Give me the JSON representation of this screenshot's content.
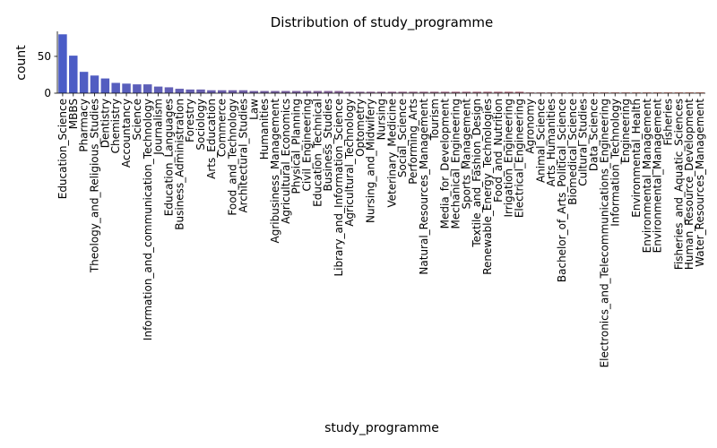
{
  "chart_data": {
    "type": "bar",
    "title": "Distribution of study_programme",
    "xlabel": "study_programme",
    "ylabel": "count",
    "ylim": [
      0,
      84
    ],
    "yticks": [
      0,
      50
    ],
    "grid": false,
    "legend": "none",
    "palette_from": "#4a5cc7",
    "palette_to": "#d8705a",
    "categories": [
      "Education_Science",
      "MBBS",
      "Pharmacy",
      "Theology_and_Religious_Studies",
      "Dentistry",
      "Chemistry",
      "Accountancy",
      "Science",
      "Information_and_communication_Technology",
      "Journalism",
      "Education_Languages",
      "Business_Administration",
      "Forestry",
      "Sociology",
      "Arts_Education",
      "Commerce",
      "Food_and_Technology",
      "Architectural_Studies",
      "Law",
      "Humanities",
      "Agribusiness_Management",
      "Agricultural_Economics",
      "Physical_Planning",
      "Civil_Engineering",
      "Education_Technical",
      "Business_Studies",
      "Library_and_Information_Science",
      "Agricultural_Technology",
      "Optometry",
      "Nursing_and_Midwifery",
      "Nursing",
      "Veterinary_Medicine",
      "Social_Science",
      "Performing_Arts",
      "Natural_Resources_Management",
      "Tourism",
      "Media_for_Development",
      "Mechanical_Engineering",
      "Sports_Management",
      "Textile_and_Fashion_Design",
      "Renewable_Energy_Technologies",
      "Food_and_Nutrition",
      "Irrigation_Engineering",
      "Electrical_Engineering",
      "Agronomy",
      "Animal_Science",
      "Arts_Humanities",
      "Bachelor_of_Arts_Political_Science",
      "Biomedical_Science",
      "Cultural_Studies",
      "Data_Science",
      "Electronics_and_Telecommunications_Engineering",
      "Information_Technology",
      "Engineering",
      "Environmental_Health",
      "Environmental_Management",
      "Environmental_Management",
      "Fisheries",
      "Fisheries_and_Aquatic_Sciences",
      "Human_Resource_Development",
      "Water_Resources_Management"
    ],
    "values": [
      80,
      51,
      29,
      24,
      20,
      14,
      13,
      12,
      12,
      9,
      8,
      6,
      5,
      5,
      4,
      4,
      4,
      4,
      3,
      3,
      3,
      3,
      3,
      3,
      3,
      3,
      3,
      2,
      2,
      2,
      2,
      2,
      2,
      2,
      2,
      2,
      2,
      2,
      2,
      2,
      2,
      2,
      2,
      2,
      1,
      1,
      1,
      1,
      1,
      1,
      1,
      1,
      1,
      1,
      1,
      1,
      1,
      1,
      1,
      1,
      1
    ]
  }
}
